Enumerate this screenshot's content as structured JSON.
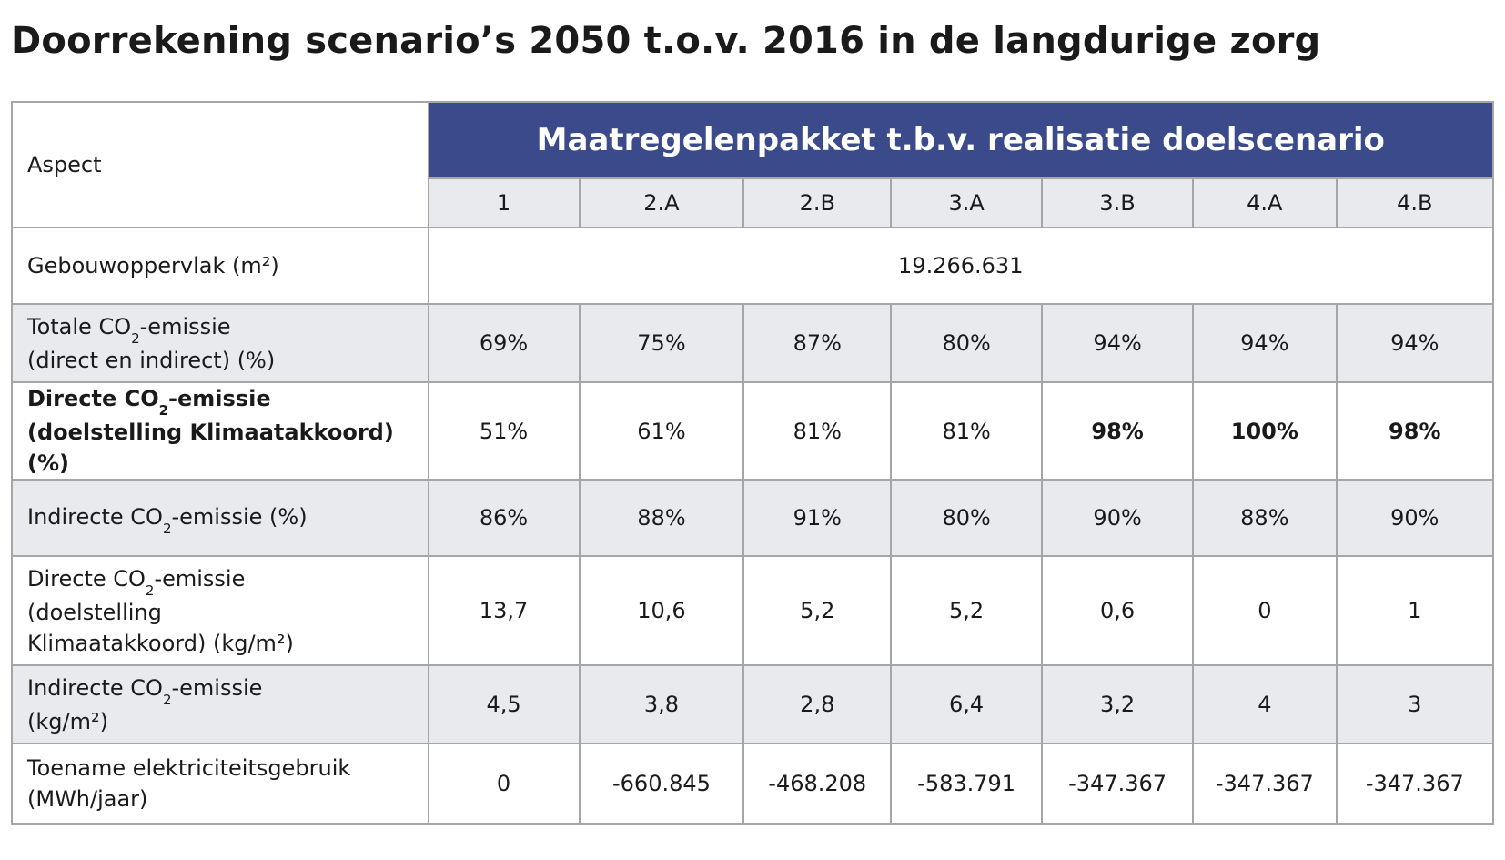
{
  "title": "Doorrekening scenario’s 2050 t.o.v. 2016 in de langdurige zorg",
  "table": {
    "aspect_header": "Aspect",
    "group_header": "Maatregelenpakket t.b.v. realisatie doelscenario",
    "columns": [
      "1",
      "2.A",
      "2.B",
      "3.A",
      "3.B",
      "4.A",
      "4.B"
    ],
    "rows": [
      {
        "label_lines": [
          {
            "a": "Gebouwoppervlak (m²)"
          }
        ],
        "merged_value": "19.266.631"
      },
      {
        "label_lines": [
          {
            "a": "Totale CO",
            "sub": "2",
            "b": "-emissie"
          },
          {
            "a": "(direct en indirect) (%)"
          }
        ],
        "values": [
          "69%",
          "75%",
          "87%",
          "80%",
          "94%",
          "94%",
          "94%"
        ]
      },
      {
        "label_lines": [
          {
            "a": "Directe CO",
            "sub": "2",
            "b": "-emissie"
          },
          {
            "a": "(doelstelling Klimaatakkoord) (%)"
          }
        ],
        "values": [
          "51%",
          "61%",
          "81%",
          "81%",
          "98%",
          "100%",
          "98%"
        ],
        "bold_from": 4
      },
      {
        "label_lines": [
          {
            "a": "Indirecte CO",
            "sub": "2",
            "b": "-emissie (%)"
          }
        ],
        "values": [
          "86%",
          "88%",
          "91%",
          "80%",
          "90%",
          "88%",
          "90%"
        ]
      },
      {
        "label_lines": [
          {
            "a": "Directe CO",
            "sub": "2",
            "b": "-emissie"
          },
          {
            "a": "(doelstelling"
          },
          {
            "a": "Klimaatakkoord) (kg/m²)"
          }
        ],
        "values": [
          "13,7",
          "10,6",
          "5,2",
          "5,2",
          "0,6",
          "0",
          "1"
        ]
      },
      {
        "label_lines": [
          {
            "a": "Indirecte CO",
            "sub": "2",
            "b": "-emissie"
          },
          {
            "a": "(kg/m²)"
          }
        ],
        "values": [
          "4,5",
          "3,8",
          "2,8",
          "6,4",
          "3,2",
          "4",
          "3"
        ]
      },
      {
        "label_lines": [
          {
            "a": "Toename elektriciteitsgebruik"
          },
          {
            "a": "(MWh/jaar)"
          }
        ],
        "values": [
          "0",
          "-660.845",
          "-468.208",
          "-583.791",
          "-347.367",
          "-347.367",
          "-347.367"
        ]
      }
    ]
  }
}
